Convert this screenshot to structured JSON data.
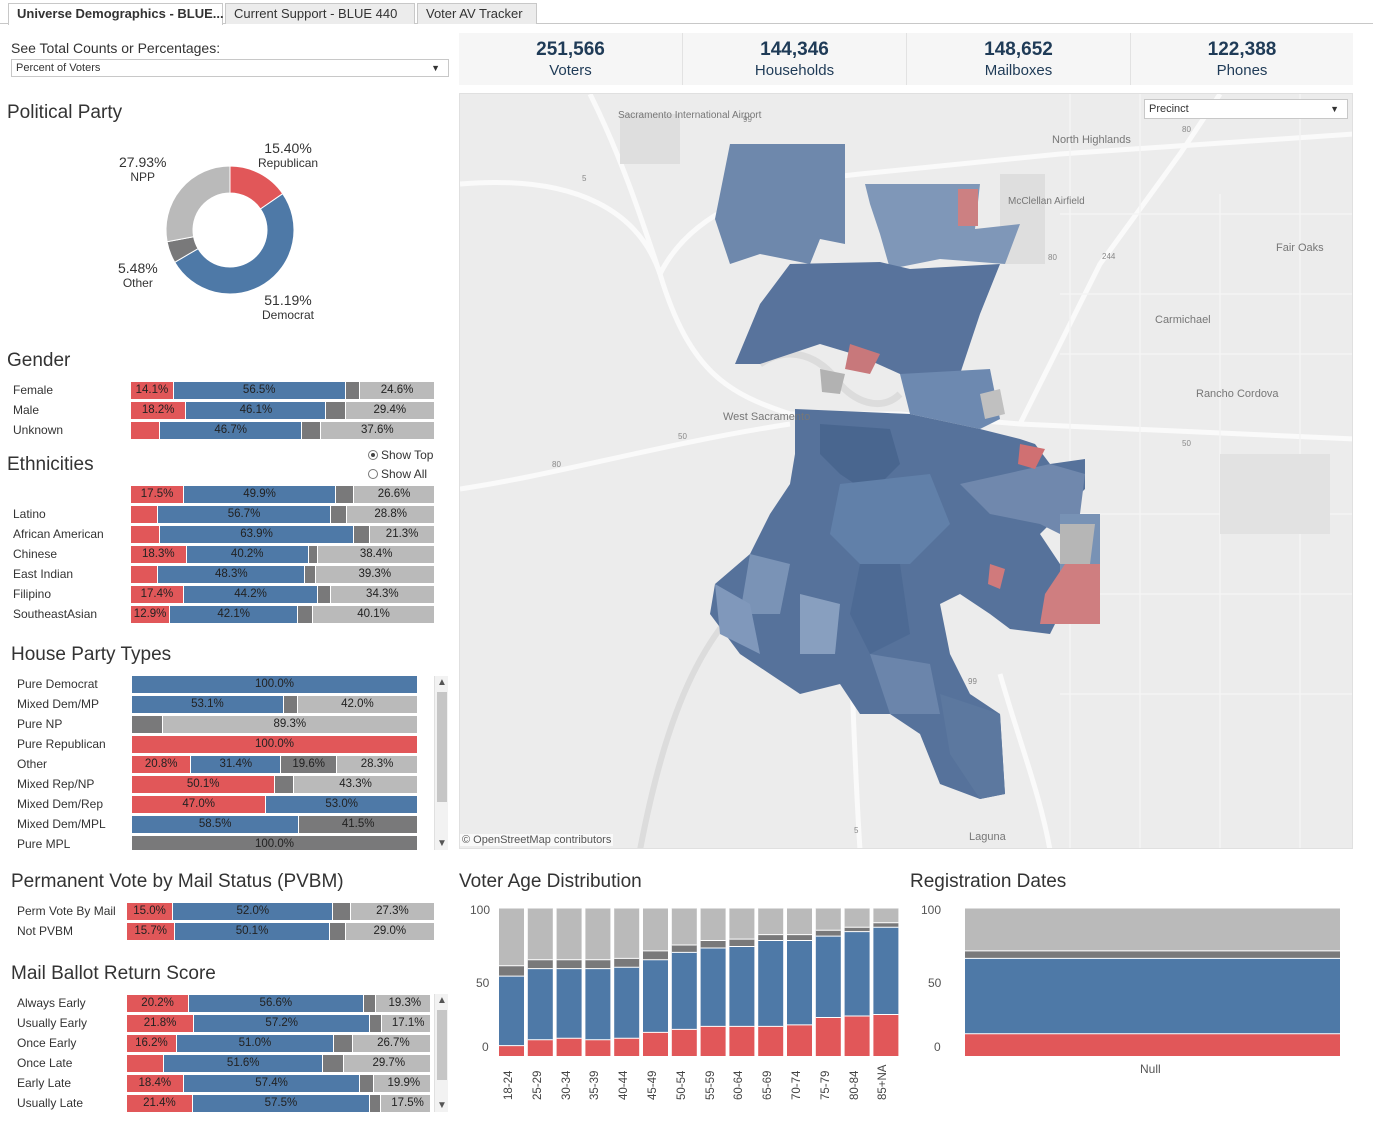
{
  "tabs": [
    {
      "label": "Universe Demographics - BLUE..."
    },
    {
      "label": "Current Support - BLUE 440"
    },
    {
      "label": "Voter AV Tracker"
    }
  ],
  "colors": {
    "republican": "#e15759",
    "democrat": "#4e79a7",
    "other": "#79797a",
    "npp": "#bababa"
  },
  "count_toggle": {
    "label": "See Total Counts or Percentages:",
    "value": "Percent of Voters"
  },
  "kpis": [
    {
      "value": "251,566",
      "label": "Voters"
    },
    {
      "value": "144,346",
      "label": "Households"
    },
    {
      "value": "148,652",
      "label": "Mailboxes"
    },
    {
      "value": "122,388",
      "label": "Phones"
    }
  ],
  "map": {
    "level_select": "Precinct",
    "attribution": "© OpenStreetMap contributors",
    "places": [
      "Sacramento International Airport",
      "North Highlands",
      "McClellan Airfield",
      "Fair Oaks",
      "Carmichael",
      "Rancho Cordova",
      "West Sacramento",
      "Laguna"
    ],
    "highways": [
      "99",
      "5",
      "80",
      "244",
      "50",
      "80",
      "50",
      "80",
      "99",
      "5"
    ]
  },
  "political_party": {
    "title": "Political Party",
    "slices": [
      {
        "pct": "15.40%",
        "name": "Republican",
        "value": 15.4,
        "color": "#e15759"
      },
      {
        "pct": "51.19%",
        "name": "Democrat",
        "value": 51.19,
        "color": "#4e79a7"
      },
      {
        "pct": "5.48%",
        "name": "Other",
        "value": 5.48,
        "color": "#79797a"
      },
      {
        "pct": "27.93%",
        "name": "NPP",
        "value": 27.93,
        "color": "#bababa"
      }
    ]
  },
  "gender": {
    "title": "Gender",
    "rows": [
      {
        "label": "Female",
        "segs": [
          {
            "v": 14.1,
            "t": "14.1%"
          },
          {
            "v": 56.5,
            "t": "56.5%"
          },
          {
            "v": 4.8,
            "t": ""
          },
          {
            "v": 24.6,
            "t": "24.6%"
          }
        ]
      },
      {
        "label": "Male",
        "segs": [
          {
            "v": 18.2,
            "t": "18.2%"
          },
          {
            "v": 46.1,
            "t": "46.1%"
          },
          {
            "v": 6.3,
            "t": ""
          },
          {
            "v": 29.4,
            "t": "29.4%"
          }
        ]
      },
      {
        "label": "Unknown",
        "segs": [
          {
            "v": 9.6,
            "t": ""
          },
          {
            "v": 46.7,
            "t": "46.7%"
          },
          {
            "v": 6.1,
            "t": ""
          },
          {
            "v": 37.6,
            "t": "37.6%"
          }
        ]
      }
    ]
  },
  "ethnicities": {
    "title": "Ethnicities",
    "radio": [
      {
        "label": "Show Top",
        "checked": true
      },
      {
        "label": "Show All",
        "checked": false
      }
    ],
    "rows": [
      {
        "label": "",
        "segs": [
          {
            "v": 17.5,
            "t": "17.5%"
          },
          {
            "v": 49.9,
            "t": "49.9%"
          },
          {
            "v": 6.0,
            "t": ""
          },
          {
            "v": 26.6,
            "t": "26.6%"
          }
        ]
      },
      {
        "label": "Latino",
        "segs": [
          {
            "v": 9.0,
            "t": ""
          },
          {
            "v": 56.7,
            "t": "56.7%"
          },
          {
            "v": 5.5,
            "t": ""
          },
          {
            "v": 28.8,
            "t": "28.8%"
          }
        ]
      },
      {
        "label": "African American",
        "segs": [
          {
            "v": 9.5,
            "t": ""
          },
          {
            "v": 63.9,
            "t": "63.9%"
          },
          {
            "v": 5.3,
            "t": ""
          },
          {
            "v": 21.3,
            "t": "21.3%"
          }
        ]
      },
      {
        "label": "Chinese",
        "segs": [
          {
            "v": 18.3,
            "t": "18.3%"
          },
          {
            "v": 40.2,
            "t": "40.2%"
          },
          {
            "v": 3.1,
            "t": ""
          },
          {
            "v": 38.4,
            "t": "38.4%"
          }
        ]
      },
      {
        "label": "East Indian",
        "segs": [
          {
            "v": 9.0,
            "t": ""
          },
          {
            "v": 48.3,
            "t": "48.3%"
          },
          {
            "v": 3.4,
            "t": ""
          },
          {
            "v": 39.3,
            "t": "39.3%"
          }
        ]
      },
      {
        "label": "Filipino",
        "segs": [
          {
            "v": 17.4,
            "t": "17.4%"
          },
          {
            "v": 44.2,
            "t": "44.2%"
          },
          {
            "v": 4.1,
            "t": ""
          },
          {
            "v": 34.3,
            "t": "34.3%"
          }
        ]
      },
      {
        "label": "SoutheastAsian",
        "segs": [
          {
            "v": 12.9,
            "t": "12.9%"
          },
          {
            "v": 42.1,
            "t": "42.1%"
          },
          {
            "v": 4.9,
            "t": ""
          },
          {
            "v": 40.1,
            "t": "40.1%"
          }
        ]
      }
    ]
  },
  "house_party": {
    "title": "House Party Types",
    "rows": [
      {
        "label": "Pure Democrat",
        "segs": [
          {
            "c": "blue",
            "v": 100.0,
            "t": "100.0%"
          }
        ]
      },
      {
        "label": "Mixed Dem/MP",
        "segs": [
          {
            "c": "blue",
            "v": 53.1,
            "t": "53.1%"
          },
          {
            "c": "dgray",
            "v": 4.9,
            "t": ""
          },
          {
            "c": "lgray",
            "v": 42.0,
            "t": "42.0%"
          }
        ]
      },
      {
        "label": "Pure NP",
        "segs": [
          {
            "c": "dgray",
            "v": 10.7,
            "t": ""
          },
          {
            "c": "lgray",
            "v": 89.3,
            "t": "89.3%"
          }
        ]
      },
      {
        "label": "Pure Republican",
        "segs": [
          {
            "c": "red",
            "v": 100.0,
            "t": "100.0%"
          }
        ]
      },
      {
        "label": "Other",
        "segs": [
          {
            "c": "red",
            "v": 20.8,
            "t": "20.8%"
          },
          {
            "c": "blue",
            "v": 31.4,
            "t": "31.4%"
          },
          {
            "c": "dgray",
            "v": 19.6,
            "t": "19.6%"
          },
          {
            "c": "lgray",
            "v": 28.3,
            "t": "28.3%"
          }
        ]
      },
      {
        "label": "Mixed Rep/NP",
        "segs": [
          {
            "c": "red",
            "v": 50.1,
            "t": "50.1%"
          },
          {
            "c": "dgray",
            "v": 6.6,
            "t": ""
          },
          {
            "c": "lgray",
            "v": 43.3,
            "t": "43.3%"
          }
        ]
      },
      {
        "label": "Mixed Dem/Rep",
        "segs": [
          {
            "c": "red",
            "v": 47.0,
            "t": "47.0%"
          },
          {
            "c": "blue",
            "v": 53.0,
            "t": "53.0%"
          }
        ]
      },
      {
        "label": "Mixed Dem/MPL",
        "segs": [
          {
            "c": "blue",
            "v": 58.5,
            "t": "58.5%"
          },
          {
            "c": "dgray",
            "v": 41.5,
            "t": "41.5%"
          }
        ]
      },
      {
        "label": "Pure MPL",
        "segs": [
          {
            "c": "dgray",
            "v": 100.0,
            "t": "100.0%"
          }
        ]
      }
    ]
  },
  "pvbm": {
    "title": "Permanent Vote by Mail Status (PVBM)",
    "rows": [
      {
        "label": "Perm Vote By Mail",
        "segs": [
          {
            "v": 15.0,
            "t": "15.0%"
          },
          {
            "v": 52.0,
            "t": "52.0%"
          },
          {
            "v": 5.7,
            "t": ""
          },
          {
            "v": 27.3,
            "t": "27.3%"
          }
        ]
      },
      {
        "label": "Not PVBM",
        "segs": [
          {
            "v": 15.7,
            "t": "15.7%"
          },
          {
            "v": 50.1,
            "t": "50.1%"
          },
          {
            "v": 5.2,
            "t": ""
          },
          {
            "v": 29.0,
            "t": "29.0%"
          }
        ]
      }
    ]
  },
  "mail_ballot": {
    "title": "Mail Ballot Return Score",
    "rows": [
      {
        "label": "Always Early",
        "segs": [
          {
            "v": 20.2,
            "t": "20.2%"
          },
          {
            "v": 56.6,
            "t": "56.6%"
          },
          {
            "v": 3.9,
            "t": ""
          },
          {
            "v": 19.3,
            "t": "19.3%"
          }
        ]
      },
      {
        "label": "Usually Early",
        "segs": [
          {
            "v": 21.8,
            "t": "21.8%"
          },
          {
            "v": 57.2,
            "t": "57.2%"
          },
          {
            "v": 3.9,
            "t": ""
          },
          {
            "v": 17.1,
            "t": "17.1%"
          }
        ]
      },
      {
        "label": "Once Early",
        "segs": [
          {
            "v": 16.2,
            "t": "16.2%"
          },
          {
            "v": 51.0,
            "t": "51.0%"
          },
          {
            "v": 6.1,
            "t": ""
          },
          {
            "v": 26.7,
            "t": "26.7%"
          }
        ]
      },
      {
        "label": "Once Late",
        "segs": [
          {
            "v": 12.1,
            "t": ""
          },
          {
            "v": 51.6,
            "t": "51.6%"
          },
          {
            "v": 6.6,
            "t": ""
          },
          {
            "v": 29.7,
            "t": "29.7%"
          }
        ]
      },
      {
        "label": "Early Late",
        "segs": [
          {
            "v": 18.4,
            "t": "18.4%"
          },
          {
            "v": 57.4,
            "t": "57.4%"
          },
          {
            "v": 4.3,
            "t": ""
          },
          {
            "v": 19.9,
            "t": "19.9%"
          }
        ]
      },
      {
        "label": "Usually Late",
        "segs": [
          {
            "v": 21.4,
            "t": "21.4%"
          },
          {
            "v": 57.5,
            "t": "57.5%"
          },
          {
            "v": 3.6,
            "t": ""
          },
          {
            "v": 17.5,
            "t": "17.5%"
          }
        ]
      }
    ]
  },
  "chart_data": [
    {
      "type": "bar",
      "stacked": true,
      "title": "Voter Age Distribution",
      "ylim": [
        0,
        100
      ],
      "yticks": [
        "100",
        "50",
        "0"
      ],
      "categories": [
        "18-24",
        "25-29",
        "30-34",
        "35-39",
        "40-44",
        "45-49",
        "50-54",
        "55-59",
        "60-64",
        "65-69",
        "70-74",
        "75-79",
        "80-84",
        "85+NA"
      ],
      "series": [
        {
          "name": "Republican",
          "values": [
            7,
            11,
            12,
            11,
            12,
            16,
            18,
            20,
            20,
            20,
            21,
            26,
            27,
            28
          ]
        },
        {
          "name": "Democrat",
          "values": [
            47,
            48,
            47,
            48,
            48,
            49,
            52,
            53,
            54,
            58,
            57,
            55,
            57,
            59
          ]
        },
        {
          "name": "Other",
          "values": [
            7,
            6,
            6,
            6,
            6,
            6,
            5,
            5,
            5,
            4,
            4,
            4,
            3,
            3
          ]
        },
        {
          "name": "NPP",
          "values": [
            39,
            35,
            35,
            35,
            34,
            29,
            25,
            22,
            21,
            18,
            18,
            15,
            13,
            10
          ]
        }
      ]
    },
    {
      "type": "bar",
      "stacked": true,
      "title": "Registration Dates",
      "ylim": [
        0,
        100
      ],
      "yticks": [
        "100",
        "50",
        "0"
      ],
      "categories": [
        "Null"
      ],
      "series": [
        {
          "name": "Republican",
          "values": [
            15
          ]
        },
        {
          "name": "Democrat",
          "values": [
            51
          ]
        },
        {
          "name": "Other",
          "values": [
            5
          ]
        },
        {
          "name": "NPP",
          "values": [
            29
          ]
        }
      ]
    }
  ]
}
